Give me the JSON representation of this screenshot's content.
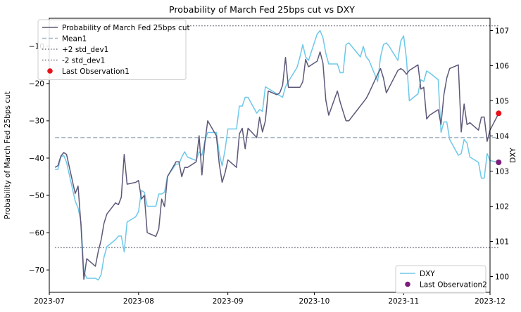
{
  "chart_data": {
    "type": "line",
    "title": "Probability of March Fed 25bps cut vs DXY",
    "ylabel_left": "Probability of March Fed 25bps cut",
    "ylabel_right": "DXY",
    "xlim": [
      "2023-07-01",
      "2023-12-01"
    ],
    "ylim_left": [
      -76,
      -2.5
    ],
    "ylim_right": [
      99.55,
      107.35
    ],
    "x_ticks": [
      {
        "date": "2023-07-01",
        "label": "2023-07"
      },
      {
        "date": "2023-08-01",
        "label": "2023-08"
      },
      {
        "date": "2023-09-01",
        "label": "2023-09"
      },
      {
        "date": "2023-10-01",
        "label": "2023-10"
      },
      {
        "date": "2023-11-01",
        "label": "2023-11"
      },
      {
        "date": "2023-12-01",
        "label": "2023-12"
      }
    ],
    "y_ticks_left": [
      -70,
      -60,
      -50,
      -40,
      -30,
      -20,
      -10
    ],
    "y_ticks_right": [
      100,
      101,
      102,
      103,
      104,
      105,
      106,
      107
    ],
    "grid": false,
    "colors": {
      "prob": "#5c5878",
      "dxy": "#6ec8e8",
      "mean": "#a6b8c6",
      "std": "#6f7080",
      "last1": "#e8121b",
      "last2": "#7b1e7b"
    },
    "series": [
      {
        "name": "Probability of March Fed 25bps cut",
        "axis": "left",
        "points": [
          [
            "2023-07-03",
            -42.5
          ],
          [
            "2023-07-04",
            -42.0
          ],
          [
            "2023-07-05",
            -39.5
          ],
          [
            "2023-07-06",
            -38.5
          ],
          [
            "2023-07-07",
            -39.0
          ],
          [
            "2023-07-10",
            -49.5
          ],
          [
            "2023-07-11",
            -47.5
          ],
          [
            "2023-07-12",
            -58.0
          ],
          [
            "2023-07-13",
            -72.5
          ],
          [
            "2023-07-14",
            -67.0
          ],
          [
            "2023-07-17",
            -69.0
          ],
          [
            "2023-07-18",
            -65.0
          ],
          [
            "2023-07-19",
            -62.0
          ],
          [
            "2023-07-20",
            -57.5
          ],
          [
            "2023-07-21",
            -55.0
          ],
          [
            "2023-07-24",
            -52.0
          ],
          [
            "2023-07-25",
            -52.5
          ],
          [
            "2023-07-26",
            -50.5
          ],
          [
            "2023-07-27",
            -39.0
          ],
          [
            "2023-07-28",
            -47.0
          ],
          [
            "2023-07-31",
            -46.5
          ],
          [
            "2023-08-01",
            -46.0
          ],
          [
            "2023-08-02",
            -51.0
          ],
          [
            "2023-08-03",
            -50.0
          ],
          [
            "2023-08-04",
            -60.0
          ],
          [
            "2023-08-07",
            -61.0
          ],
          [
            "2023-08-08",
            -59.0
          ],
          [
            "2023-08-09",
            -51.0
          ],
          [
            "2023-08-10",
            -53.0
          ],
          [
            "2023-08-11",
            -45.0
          ],
          [
            "2023-08-14",
            -41.0
          ],
          [
            "2023-08-15",
            -41.0
          ],
          [
            "2023-08-16",
            -45.0
          ],
          [
            "2023-08-17",
            -42.5
          ],
          [
            "2023-08-18",
            -42.5
          ],
          [
            "2023-08-21",
            -41.0
          ],
          [
            "2023-08-22",
            -34.0
          ],
          [
            "2023-08-23",
            -44.5
          ],
          [
            "2023-08-24",
            -36.0
          ],
          [
            "2023-08-25",
            -30.0
          ],
          [
            "2023-08-28",
            -34.0
          ],
          [
            "2023-08-29",
            -41.5
          ],
          [
            "2023-08-30",
            -46.5
          ],
          [
            "2023-08-31",
            -44.0
          ],
          [
            "2023-09-01",
            -40.5
          ],
          [
            "2023-09-04",
            -42.5
          ],
          [
            "2023-09-05",
            -33.5
          ],
          [
            "2023-09-06",
            -32.0
          ],
          [
            "2023-09-07",
            -37.5
          ],
          [
            "2023-09-08",
            -32.0
          ],
          [
            "2023-09-11",
            -34.5
          ],
          [
            "2023-09-12",
            -29.0
          ],
          [
            "2023-09-13",
            -33.0
          ],
          [
            "2023-09-14",
            -30.0
          ],
          [
            "2023-09-15",
            -22.0
          ],
          [
            "2023-09-18",
            -23.0
          ],
          [
            "2023-09-19",
            -22.5
          ],
          [
            "2023-09-20",
            -20.5
          ],
          [
            "2023-09-21",
            -13.0
          ],
          [
            "2023-09-22",
            -21.0
          ],
          [
            "2023-09-25",
            -21.0
          ],
          [
            "2023-09-26",
            -21.0
          ],
          [
            "2023-09-27",
            -19.5
          ],
          [
            "2023-09-28",
            -13.5
          ],
          [
            "2023-09-29",
            -15.5
          ],
          [
            "2023-10-02",
            -14.0
          ],
          [
            "2023-10-03",
            -11.5
          ],
          [
            "2023-10-04",
            -14.5
          ],
          [
            "2023-10-05",
            -24.5
          ],
          [
            "2023-10-06",
            -28.5
          ],
          [
            "2023-10-09",
            -22.0
          ],
          [
            "2023-10-10",
            -25.0
          ],
          [
            "2023-10-11",
            -27.5
          ],
          [
            "2023-10-12",
            -30.0
          ],
          [
            "2023-10-13",
            -30.0
          ],
          [
            "2023-10-16",
            -27.0
          ],
          [
            "2023-10-17",
            -26.0
          ],
          [
            "2023-10-18",
            -25.0
          ],
          [
            "2023-10-19",
            -24.0
          ],
          [
            "2023-10-20",
            -22.5
          ],
          [
            "2023-10-23",
            -17.5
          ],
          [
            "2023-10-24",
            -16.0
          ],
          [
            "2023-10-25",
            -18.5
          ],
          [
            "2023-10-26",
            -22.5
          ],
          [
            "2023-10-27",
            -21.0
          ],
          [
            "2023-10-30",
            -16.5
          ],
          [
            "2023-10-31",
            -16.0
          ],
          [
            "2023-11-01",
            -16.5
          ],
          [
            "2023-11-02",
            -17.5
          ],
          [
            "2023-11-03",
            -16.5
          ],
          [
            "2023-11-06",
            -15.0
          ],
          [
            "2023-11-07",
            -21.5
          ],
          [
            "2023-11-08",
            -21.0
          ],
          [
            "2023-11-09",
            -29.5
          ],
          [
            "2023-11-10",
            -28.5
          ],
          [
            "2023-11-13",
            -27.0
          ],
          [
            "2023-11-14",
            -31.0
          ],
          [
            "2023-11-15",
            -23.0
          ],
          [
            "2023-11-16",
            -18.5
          ],
          [
            "2023-11-17",
            -16.0
          ],
          [
            "2023-11-20",
            -15.0
          ],
          [
            "2023-11-21",
            -33.0
          ],
          [
            "2023-11-22",
            -25.5
          ],
          [
            "2023-11-23",
            -31.0
          ],
          [
            "2023-11-24",
            -30.5
          ],
          [
            "2023-11-27",
            -32.5
          ],
          [
            "2023-11-28",
            -29.0
          ],
          [
            "2023-11-29",
            -29.0
          ],
          [
            "2023-11-30",
            -35.5
          ],
          [
            "2023-12-01",
            -32.5
          ],
          [
            "2023-12-04",
            -28.0
          ]
        ]
      },
      {
        "name": "DXY",
        "axis": "right",
        "points": [
          [
            "2023-07-03",
            103.05
          ],
          [
            "2023-07-04",
            103.05
          ],
          [
            "2023-07-05",
            103.4
          ],
          [
            "2023-07-06",
            103.45
          ],
          [
            "2023-07-07",
            103.25
          ],
          [
            "2023-07-10",
            102.15
          ],
          [
            "2023-07-11",
            101.95
          ],
          [
            "2023-07-12",
            101.55
          ],
          [
            "2023-07-13",
            100.15
          ],
          [
            "2023-07-14",
            99.95
          ],
          [
            "2023-07-17",
            99.95
          ],
          [
            "2023-07-18",
            99.9
          ],
          [
            "2023-07-19",
            100.05
          ],
          [
            "2023-07-20",
            100.55
          ],
          [
            "2023-07-21",
            100.85
          ],
          [
            "2023-07-24",
            101.05
          ],
          [
            "2023-07-25",
            101.15
          ],
          [
            "2023-07-26",
            101.15
          ],
          [
            "2023-07-27",
            100.7
          ],
          [
            "2023-07-28",
            101.55
          ],
          [
            "2023-07-31",
            101.7
          ],
          [
            "2023-08-01",
            101.85
          ],
          [
            "2023-08-02",
            102.45
          ],
          [
            "2023-08-03",
            102.4
          ],
          [
            "2023-08-04",
            102.0
          ],
          [
            "2023-08-07",
            102.0
          ],
          [
            "2023-08-08",
            102.35
          ],
          [
            "2023-08-09",
            102.35
          ],
          [
            "2023-08-10",
            102.4
          ],
          [
            "2023-08-11",
            102.85
          ],
          [
            "2023-08-14",
            103.2
          ],
          [
            "2023-08-15",
            103.2
          ],
          [
            "2023-08-16",
            103.4
          ],
          [
            "2023-08-17",
            103.55
          ],
          [
            "2023-08-18",
            103.4
          ],
          [
            "2023-08-21",
            103.3
          ],
          [
            "2023-08-22",
            103.55
          ],
          [
            "2023-08-23",
            103.45
          ],
          [
            "2023-08-24",
            103.85
          ],
          [
            "2023-08-25",
            104.1
          ],
          [
            "2023-08-28",
            104.1
          ],
          [
            "2023-08-29",
            103.5
          ],
          [
            "2023-08-30",
            103.15
          ],
          [
            "2023-08-31",
            103.6
          ],
          [
            "2023-09-01",
            104.2
          ],
          [
            "2023-09-04",
            104.2
          ],
          [
            "2023-09-05",
            104.85
          ],
          [
            "2023-09-06",
            104.85
          ],
          [
            "2023-09-07",
            105.1
          ],
          [
            "2023-09-08",
            105.1
          ],
          [
            "2023-09-11",
            104.65
          ],
          [
            "2023-09-12",
            104.75
          ],
          [
            "2023-09-13",
            104.7
          ],
          [
            "2023-09-14",
            105.4
          ],
          [
            "2023-09-15",
            105.35
          ],
          [
            "2023-09-18",
            105.2
          ],
          [
            "2023-09-19",
            105.15
          ],
          [
            "2023-09-20",
            105.1
          ],
          [
            "2023-09-21",
            105.4
          ],
          [
            "2023-09-22",
            105.55
          ],
          [
            "2023-09-25",
            105.95
          ],
          [
            "2023-09-26",
            106.25
          ],
          [
            "2023-09-27",
            106.6
          ],
          [
            "2023-09-28",
            106.25
          ],
          [
            "2023-09-29",
            106.15
          ],
          [
            "2023-10-02",
            106.9
          ],
          [
            "2023-10-03",
            107.0
          ],
          [
            "2023-10-04",
            106.8
          ],
          [
            "2023-10-05",
            106.35
          ],
          [
            "2023-10-06",
            106.05
          ],
          [
            "2023-10-09",
            106.05
          ],
          [
            "2023-10-10",
            105.8
          ],
          [
            "2023-10-11",
            105.8
          ],
          [
            "2023-10-12",
            106.6
          ],
          [
            "2023-10-13",
            106.65
          ],
          [
            "2023-10-16",
            106.35
          ],
          [
            "2023-10-17",
            106.25
          ],
          [
            "2023-10-18",
            106.55
          ],
          [
            "2023-10-19",
            106.25
          ],
          [
            "2023-10-20",
            106.15
          ],
          [
            "2023-10-23",
            105.55
          ],
          [
            "2023-10-24",
            106.25
          ],
          [
            "2023-10-25",
            106.6
          ],
          [
            "2023-10-26",
            106.65
          ],
          [
            "2023-10-27",
            106.55
          ],
          [
            "2023-10-30",
            106.15
          ],
          [
            "2023-10-31",
            106.7
          ],
          [
            "2023-11-01",
            106.85
          ],
          [
            "2023-11-02",
            106.2
          ],
          [
            "2023-11-03",
            105.0
          ],
          [
            "2023-11-06",
            105.2
          ],
          [
            "2023-11-07",
            105.6
          ],
          [
            "2023-11-08",
            105.55
          ],
          [
            "2023-11-09",
            105.85
          ],
          [
            "2023-11-10",
            105.8
          ],
          [
            "2023-11-13",
            105.6
          ],
          [
            "2023-11-14",
            104.1
          ],
          [
            "2023-11-15",
            104.4
          ],
          [
            "2023-11-16",
            104.4
          ],
          [
            "2023-11-17",
            103.9
          ],
          [
            "2023-11-20",
            103.45
          ],
          [
            "2023-11-21",
            103.5
          ],
          [
            "2023-11-22",
            103.9
          ],
          [
            "2023-11-23",
            103.8
          ],
          [
            "2023-11-24",
            103.4
          ],
          [
            "2023-11-27",
            103.25
          ],
          [
            "2023-11-28",
            102.8
          ],
          [
            "2023-11-29",
            102.8
          ],
          [
            "2023-11-30",
            103.5
          ],
          [
            "2023-12-01",
            103.3
          ],
          [
            "2023-12-04",
            103.25
          ]
        ]
      },
      {
        "name": "Mean1",
        "axis": "left",
        "style": "dashed",
        "value": -34.5,
        "x_range": [
          "2023-07-03",
          "2023-12-04"
        ]
      },
      {
        "name": "+2 std_dev1",
        "axis": "left",
        "style": "dotted",
        "value": -4.5,
        "x_range": [
          "2023-07-03",
          "2023-12-04"
        ]
      },
      {
        "name": "-2 std_dev1",
        "axis": "left",
        "style": "dotted",
        "value": -64.0,
        "x_range": [
          "2023-07-03",
          "2023-12-04"
        ]
      },
      {
        "name": "Last Observation1",
        "axis": "left",
        "style": "marker",
        "x": "2023-12-04",
        "y": -28.0
      },
      {
        "name": "Last Observation2",
        "axis": "right",
        "style": "marker",
        "x": "2023-12-04",
        "y": 103.25
      }
    ],
    "legend_left": {
      "placement": "upper left",
      "entries": [
        {
          "label": "Probability of March Fed 25bps cut",
          "kind": "line",
          "color": "#5c5878"
        },
        {
          "label": "Mean1",
          "kind": "dashed",
          "color": "#a6b8c6"
        },
        {
          "label": "+2 std_dev1",
          "kind": "dotted",
          "color": "#6f7080"
        },
        {
          "label": "-2 std_dev1",
          "kind": "dotted",
          "color": "#6f7080"
        },
        {
          "label": "Last Observation1",
          "kind": "marker",
          "color": "#e8121b"
        }
      ]
    },
    "legend_right": {
      "placement": "lower right",
      "entries": [
        {
          "label": "DXY",
          "kind": "line",
          "color": "#6ec8e8"
        },
        {
          "label": "Last Observation2",
          "kind": "marker",
          "color": "#7b1e7b"
        }
      ]
    }
  }
}
